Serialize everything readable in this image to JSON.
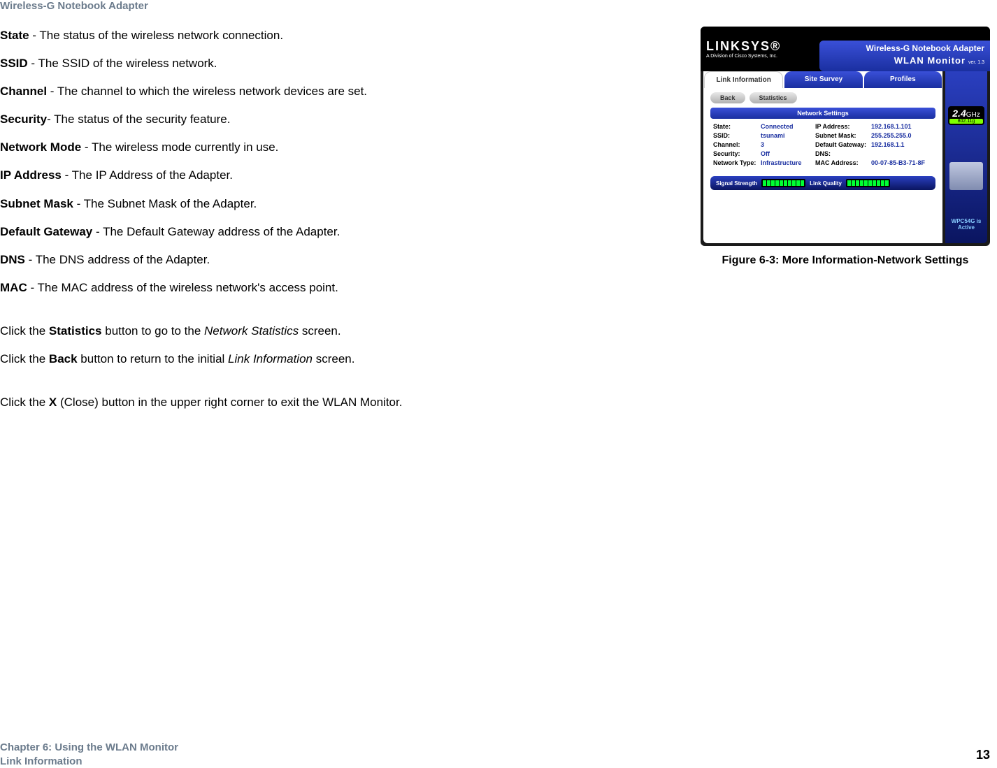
{
  "header": {
    "product": "Wireless-G Notebook Adapter"
  },
  "definitions": {
    "state": {
      "term": "State",
      "desc": " - The status of the wireless network connection."
    },
    "ssid": {
      "term": "SSID",
      "desc": " - The SSID of the wireless network."
    },
    "channel": {
      "term": "Channel",
      "desc": " - The channel to which the wireless network devices are set."
    },
    "security": {
      "term": "Security",
      "desc": "- The status of the security feature."
    },
    "networkmode": {
      "term": "Network Mode",
      "desc": " - The wireless mode currently in use."
    },
    "ipaddress": {
      "term": "IP Address",
      "desc": " - The IP Address of the Adapter."
    },
    "subnetmask": {
      "term": "Subnet Mask",
      "desc": " - The Subnet Mask of the Adapter."
    },
    "gateway": {
      "term": "Default Gateway",
      "desc": " - The Default Gateway address of the Adapter."
    },
    "dns": {
      "term": "DNS",
      "desc": " - The DNS address of the Adapter."
    },
    "mac": {
      "term": "MAC",
      "desc": " - The MAC address of the wireless network's access point."
    }
  },
  "instructions": {
    "stats_pre": "Click the ",
    "stats_btn": "Statistics",
    "stats_mid": " button to go to the ",
    "stats_screen": "Network Statistics",
    "stats_post": " screen.",
    "back_pre": "Click the ",
    "back_btn": "Back",
    "back_mid": " button to return to the initial ",
    "back_screen": "Link Information",
    "back_post": " screen.",
    "close_pre": "Click the ",
    "close_btn": "X",
    "close_post": " (Close) button in the upper right corner to exit the WLAN Monitor."
  },
  "figure": {
    "caption": "Figure 6-3: More Information-Network Settings",
    "brand": "LINKSYS",
    "brand_sub": "A Division of Cisco Systems, Inc.",
    "app_title_l1": "Wireless-G Notebook Adapter",
    "app_title_l2": "WLAN Monitor",
    "version": "ver. 1.3",
    "tabs": {
      "t1": "Link Information",
      "t2": "Site Survey",
      "t3": "Profiles"
    },
    "subbtn": {
      "back": "Back",
      "stats": "Statistics"
    },
    "panel_header": "Network Settings",
    "fields": {
      "state_l": "State:",
      "state_v": "Connected",
      "ssid_l": "SSID:",
      "ssid_v": "tsunami",
      "channel_l": "Channel:",
      "channel_v": "3",
      "security_l": "Security:",
      "security_v": "Off",
      "nettype_l": "Network Type:",
      "nettype_v": "Infrastructure",
      "ip_l": "IP Address:",
      "ip_v": "192.168.1.101",
      "subnet_l": "Subnet Mask:",
      "subnet_v": "255.255.255.0",
      "gw_l": "Default Gateway:",
      "gw_v": "192.168.1.1",
      "dns_l": "DNS:",
      "dns_v": "",
      "mac_l": "MAC Address:",
      "mac_v": "00-07-85-B3-71-8F"
    },
    "signal": "Signal Strength",
    "quality": "Link Quality",
    "ghz": "2.4",
    "ghz_unit": "GHz",
    "band": "802.11g",
    "active": "WPC54G is Active"
  },
  "footer": {
    "chapter": "Chapter 6: Using the WLAN Monitor",
    "section": "Link Information",
    "page": "13"
  }
}
